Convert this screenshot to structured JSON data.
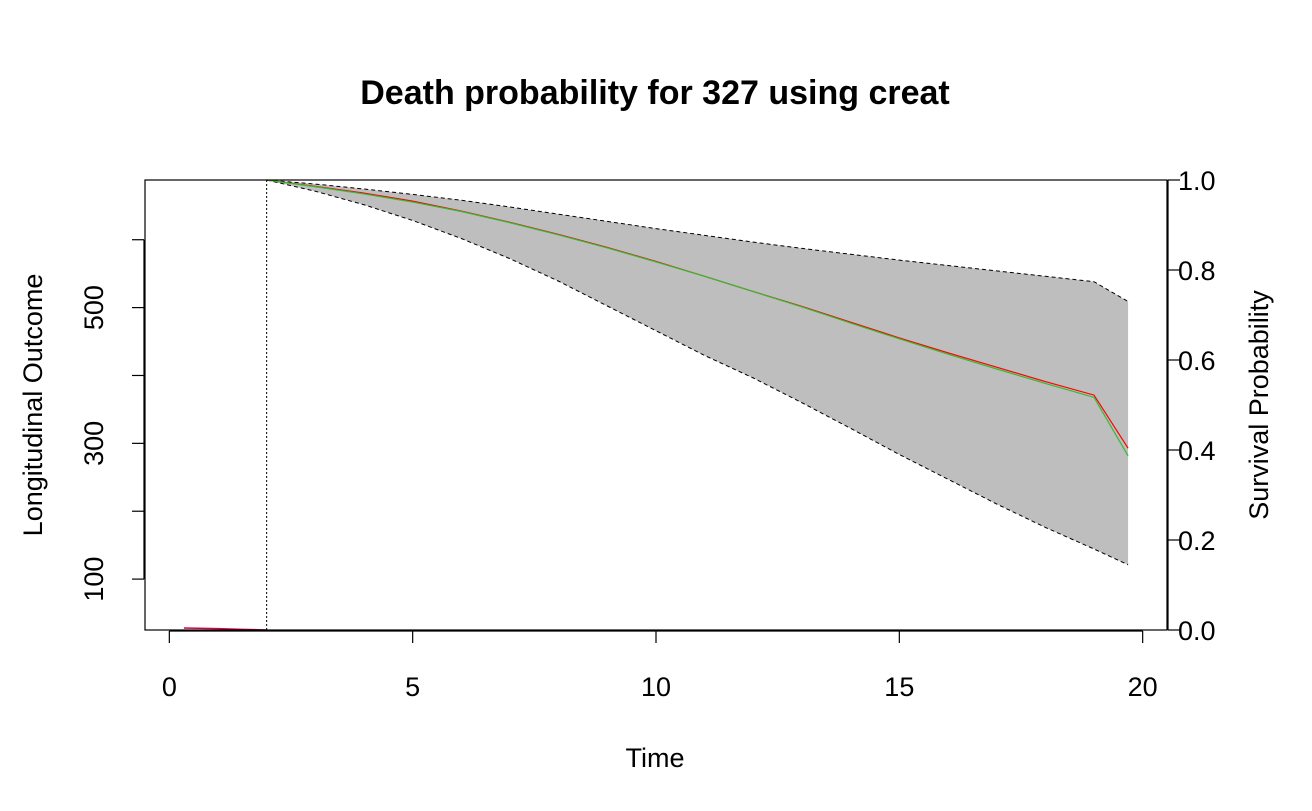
{
  "chart_data": {
    "type": "area",
    "title": "Death probability for 327 using creat",
    "xlabel": "Time",
    "ylabel_left": "Longitudinal Outcome",
    "ylabel_right": "Survival Probability",
    "xlim": [
      -0.5,
      20.5
    ],
    "x_ticks": [
      "0",
      "5",
      "10",
      "15",
      "20"
    ],
    "left_ylim": [
      25,
      688
    ],
    "left_ticks": [
      "100",
      "300",
      "500"
    ],
    "left_minor_ticks": [
      200,
      400,
      600
    ],
    "right_ylim": [
      0,
      1
    ],
    "right_ticks": [
      "0.0",
      "0.2",
      "0.4",
      "0.6",
      "0.8",
      "1.0"
    ],
    "last_visit_time": 2.0,
    "longitudinal_outcome": {
      "color": "#d4004f",
      "x": [
        0.3,
        1.0,
        1.5,
        2.0
      ],
      "y": [
        28,
        27,
        26,
        25
      ]
    },
    "survival": {
      "x": [
        2.0,
        3,
        4,
        5,
        6,
        7,
        8,
        9,
        10,
        11,
        12,
        13,
        14,
        15,
        16,
        17,
        18,
        19,
        19.7
      ],
      "mean": [
        1.0,
        0.986,
        0.971,
        0.953,
        0.931,
        0.906,
        0.879,
        0.85,
        0.819,
        0.786,
        0.752,
        0.719,
        0.684,
        0.649,
        0.616,
        0.584,
        0.552,
        0.522,
        0.404
      ],
      "median": [
        1.0,
        0.985,
        0.969,
        0.951,
        0.93,
        0.905,
        0.878,
        0.849,
        0.818,
        0.786,
        0.752,
        0.718,
        0.682,
        0.647,
        0.613,
        0.58,
        0.548,
        0.517,
        0.387
      ],
      "lower": [
        1.0,
        0.975,
        0.945,
        0.91,
        0.87,
        0.825,
        0.775,
        0.72,
        0.665,
        0.61,
        0.56,
        0.505,
        0.448,
        0.39,
        0.335,
        0.28,
        0.228,
        0.18,
        0.145
      ],
      "upper": [
        1.0,
        0.991,
        0.98,
        0.968,
        0.955,
        0.94,
        0.924,
        0.908,
        0.892,
        0.877,
        0.862,
        0.848,
        0.835,
        0.822,
        0.81,
        0.798,
        0.786,
        0.774,
        0.73
      ],
      "mean_color": "#ff0000",
      "median_color": "#33bb33",
      "band_color": "#bebebe"
    },
    "grid": false
  }
}
